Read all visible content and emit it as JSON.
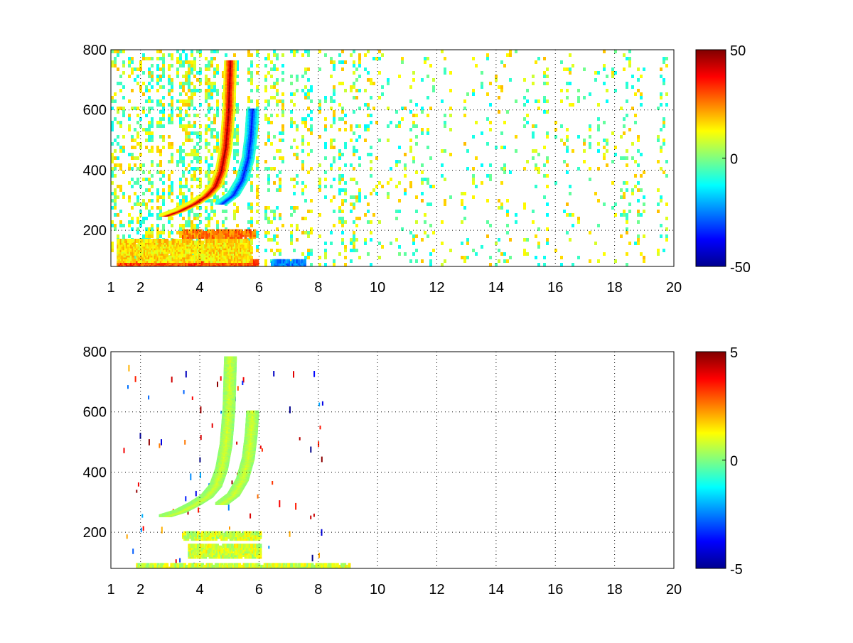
{
  "chart_data": [
    {
      "type": "heatmap",
      "title": "",
      "xlabel": "",
      "ylabel": "",
      "xlim": [
        1,
        20
      ],
      "ylim": [
        80,
        800
      ],
      "x_ticks": [
        1,
        2,
        4,
        6,
        8,
        10,
        12,
        14,
        16,
        18,
        20
      ],
      "x_tick_labels": [
        "1",
        "2",
        "4",
        "6",
        "8",
        "10",
        "12",
        "14",
        "16",
        "18",
        "20"
      ],
      "y_ticks": [
        200,
        400,
        600,
        800
      ],
      "y_tick_labels": [
        "200",
        "400",
        "600",
        "800"
      ],
      "grid": true,
      "colormap": "jet",
      "clim": [
        -50,
        50
      ],
      "colorbar_ticks": [
        -50,
        0,
        50
      ],
      "colorbar_tick_labels": [
        "-50",
        "0",
        "50"
      ],
      "features": [
        {
          "kind": "ridge",
          "value": 45,
          "points": [
            [
              2.8,
              250
            ],
            [
              3.3,
              268
            ],
            [
              3.8,
              292
            ],
            [
              4.2,
              318
            ],
            [
              4.5,
              350
            ],
            [
              4.7,
              400
            ],
            [
              4.85,
              480
            ],
            [
              4.95,
              600
            ],
            [
              5.0,
              760
            ]
          ]
        },
        {
          "kind": "ridge",
          "value": -35,
          "points": [
            [
              4.7,
              290
            ],
            [
              5.1,
              320
            ],
            [
              5.4,
              370
            ],
            [
              5.6,
              440
            ],
            [
              5.7,
              520
            ],
            [
              5.75,
              600
            ]
          ]
        },
        {
          "kind": "band",
          "value": 30,
          "x": [
            1.2,
            5.9
          ],
          "y": [
            80,
            100
          ]
        },
        {
          "kind": "band",
          "value": 15,
          "x": [
            1.2,
            5.7
          ],
          "y": [
            100,
            170
          ]
        },
        {
          "kind": "band",
          "value": 25,
          "x": [
            3.4,
            5.8
          ],
          "y": [
            180,
            200
          ]
        },
        {
          "kind": "band",
          "value": -25,
          "x": [
            6.4,
            7.5
          ],
          "y": [
            80,
            100
          ]
        }
      ]
    },
    {
      "type": "heatmap",
      "title": "",
      "xlabel": "",
      "ylabel": "",
      "xlim": [
        1,
        20
      ],
      "ylim": [
        80,
        800
      ],
      "x_ticks": [
        1,
        2,
        4,
        6,
        8,
        10,
        12,
        14,
        16,
        18,
        20
      ],
      "x_tick_labels": [
        "1",
        "2",
        "4",
        "6",
        "8",
        "10",
        "12",
        "14",
        "16",
        "18",
        "20"
      ],
      "y_ticks": [
        200,
        400,
        600,
        800
      ],
      "y_tick_labels": [
        "200",
        "400",
        "600",
        "800"
      ],
      "grid": true,
      "colormap": "jet",
      "clim": [
        -5,
        5
      ],
      "colorbar_ticks": [
        -5,
        0,
        5
      ],
      "colorbar_tick_labels": [
        "-5",
        "0",
        "5"
      ],
      "features": [
        {
          "kind": "ridge",
          "value": 0.8,
          "points": [
            [
              2.8,
              255
            ],
            [
              3.3,
              270
            ],
            [
              3.8,
              295
            ],
            [
              4.2,
              320
            ],
            [
              4.5,
              355
            ],
            [
              4.7,
              410
            ],
            [
              4.85,
              490
            ],
            [
              4.95,
              610
            ],
            [
              5.0,
              780
            ]
          ]
        },
        {
          "kind": "ridge",
          "value": 0.8,
          "points": [
            [
              4.7,
              295
            ],
            [
              5.1,
              325
            ],
            [
              5.4,
              375
            ],
            [
              5.6,
              445
            ],
            [
              5.7,
              525
            ],
            [
              5.75,
              600
            ]
          ]
        },
        {
          "kind": "band",
          "value": 0.8,
          "x": [
            1.8,
            9.0
          ],
          "y": [
            80,
            95
          ]
        },
        {
          "kind": "band",
          "value": 0.8,
          "x": [
            3.4,
            6.0
          ],
          "y": [
            180,
            200
          ]
        },
        {
          "kind": "band",
          "value": 0.8,
          "x": [
            3.6,
            6.0
          ],
          "y": [
            120,
            160
          ]
        }
      ]
    }
  ]
}
